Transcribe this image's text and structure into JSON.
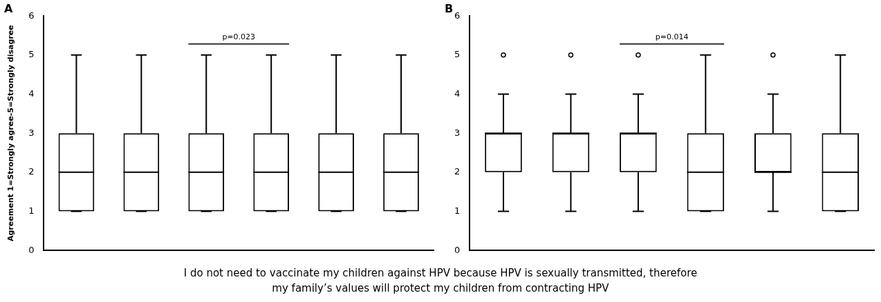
{
  "chart_data": [
    {
      "type": "box",
      "title": "A",
      "ylabel": "Agreement 1=Strongly agree-5=Strongly disagree",
      "categories": [
        null,
        null,
        null,
        null,
        null,
        null
      ],
      "ylim": [
        0,
        6
      ],
      "yticks": [
        0,
        1,
        2,
        3,
        4,
        5,
        6
      ],
      "grid": false,
      "legend": false,
      "annotations": [
        "p=0.023"
      ],
      "color": "#000000",
      "boxes": [
        {
          "low": 1,
          "q1": 1,
          "median": 2,
          "q3": 3,
          "high": 5
        },
        {
          "low": 1,
          "q1": 1,
          "median": 2,
          "q3": 3,
          "high": 5
        },
        {
          "low": 1,
          "q1": 1,
          "median": 2,
          "q3": 3,
          "high": 5
        },
        {
          "low": 1,
          "q1": 1,
          "median": 2,
          "q3": 3,
          "high": 5
        },
        {
          "low": 1,
          "q1": 1,
          "median": 2,
          "q3": 3,
          "high": 5
        },
        {
          "low": 1,
          "q1": 1,
          "median": 2,
          "q3": 3,
          "high": 5
        }
      ]
    },
    {
      "type": "box",
      "title": "B",
      "categories": [
        null,
        null,
        null,
        null,
        null,
        null
      ],
      "ylim": [
        0,
        6
      ],
      "yticks": [
        0,
        1,
        2,
        3,
        4,
        5,
        6
      ],
      "grid": false,
      "legend": false,
      "annotations": [
        "p=0.014"
      ],
      "color": "#000000",
      "boxes": [
        {
          "low": 1,
          "q1": 2,
          "median": 3,
          "q3": 3,
          "high": 4,
          "outliers": [
            5
          ]
        },
        {
          "low": 1,
          "q1": 2,
          "median": 3,
          "q3": 3,
          "high": 4,
          "outliers": [
            5
          ]
        },
        {
          "low": 1,
          "q1": 2,
          "median": 3,
          "q3": 3,
          "high": 4,
          "outliers": [
            5
          ]
        },
        {
          "low": 1,
          "q1": 1,
          "median": 2,
          "q3": 3,
          "high": 5
        },
        {
          "low": 1,
          "q1": 2,
          "median": 2,
          "q3": 3,
          "high": 4,
          "outliers": [
            5
          ]
        },
        {
          "low": 1,
          "q1": 1,
          "median": 2,
          "q3": 3,
          "high": 5
        }
      ]
    },
    {
      "type": "other",
      "annotations": [
        "I do not need to vaccinate my children against HPV because HPV is sexually transmitted, therefore my family’s values will protect my children from contracting HPV"
      ]
    }
  ]
}
